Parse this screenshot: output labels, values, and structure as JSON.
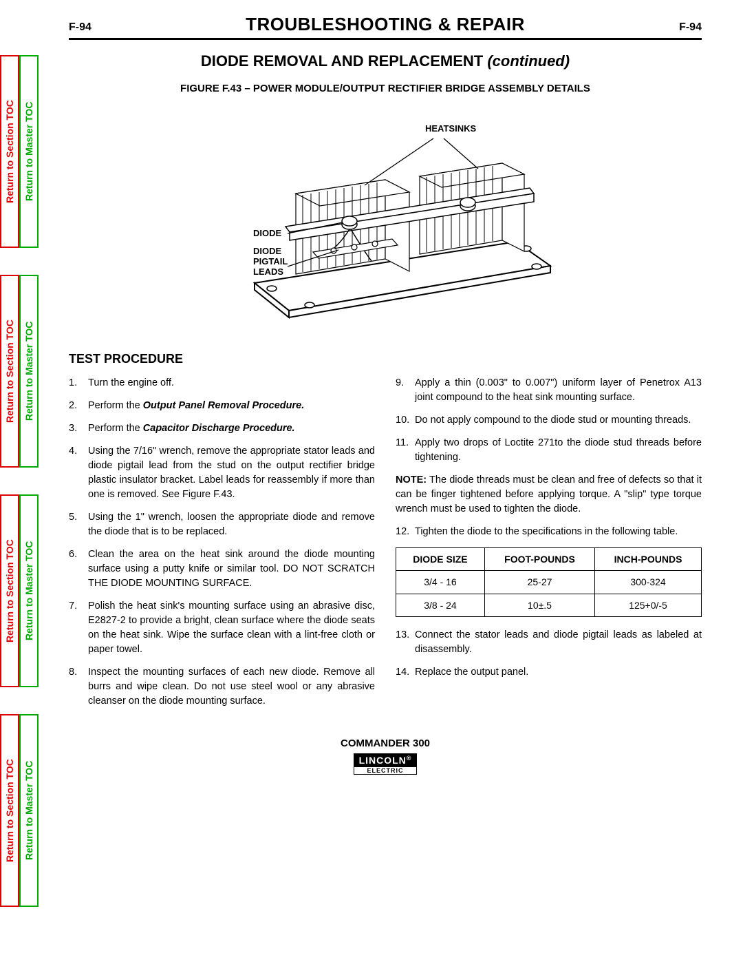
{
  "page_code": "F-94",
  "header_title": "TROUBLESHOOTING & REPAIR",
  "subtitle_main": "DIODE REMOVAL AND REPLACEMENT ",
  "subtitle_cont": "(continued)",
  "figure_caption": "FIGURE F.43 – POWER MODULE/OUTPUT RECTIFIER BRIDGE ASSEMBLY DETAILS",
  "figure_labels": {
    "heatsinks": "HEATSINKS",
    "diode": "DIODE",
    "pigtail1": "DIODE",
    "pigtail2": "PIGTAIL",
    "pigtail3": "LEADS"
  },
  "section_heading": "TEST PROCEDURE",
  "side_tabs": {
    "section": "Return to Section TOC",
    "master": "Return to Master TOC"
  },
  "steps_left": [
    {
      "pre": "Turn the engine off."
    },
    {
      "pre": "Perform the ",
      "bi": "Output Panel Removal Procedure.",
      "post": ""
    },
    {
      "pre": "Perform the ",
      "bi": "Capacitor Discharge Procedure.",
      "post": ""
    },
    {
      "pre": "Using the 7/16\" wrench, remove the appropriate stator leads and diode pigtail lead from the stud on the output rectifier bridge plastic insulator bracket.  Label leads for reassembly if more than one is removed.  See Figure F.43."
    },
    {
      "pre": "Using the 1\" wrench, loosen the appropriate diode and remove the diode that is to be replaced."
    },
    {
      "pre": "Clean the area on the heat sink around the diode mounting surface using a putty knife or similar tool.  DO NOT SCRATCH THE DIODE MOUNTING SURFACE."
    },
    {
      "pre": "Polish the heat sink's mounting surface using an abrasive disc, E2827-2 to provide a bright, clean surface where the diode seats on the heat sink.  Wipe the surface clean with a lint-free cloth or paper towel."
    },
    {
      "pre": "Inspect the mounting surfaces of each new diode.  Remove all burrs and wipe clean.  Do not use steel wool or any abrasive cleanser on the diode mounting surface."
    }
  ],
  "steps_right_a": [
    {
      "pre": "Apply a thin (0.003\" to 0.007\") uniform layer of Penetrox A13 joint compound to the heat sink mounting surface."
    },
    {
      "pre": "Do not apply compound to the diode stud or mounting threads."
    },
    {
      "pre": "Apply two drops of Loctite 271to the diode stud threads before tightening."
    }
  ],
  "note_text": "NOTE: The diode threads must be clean and free of defects so that it can be finger tightened before applying torque. A \"slip\" type torque wrench must be used to tighten the diode.",
  "steps_right_b": [
    {
      "pre": "Tighten the diode to the specifications in the following table."
    }
  ],
  "table": {
    "headers": [
      "DIODE SIZE",
      "FOOT-POUNDS",
      "INCH-POUNDS"
    ],
    "rows": [
      [
        "3/4 - 16",
        "25-27",
        "300-324"
      ],
      [
        "3/8 - 24",
        "10±.5",
        "125+0/-5"
      ]
    ]
  },
  "steps_right_c": [
    {
      "pre": "Connect the stator leads and diode pigtail leads as labeled at disassembly."
    },
    {
      "pre": "Replace the output panel."
    }
  ],
  "footer_model": "COMMANDER 300",
  "logo_top": "LINCOLN",
  "logo_sub": "ELECTRIC"
}
